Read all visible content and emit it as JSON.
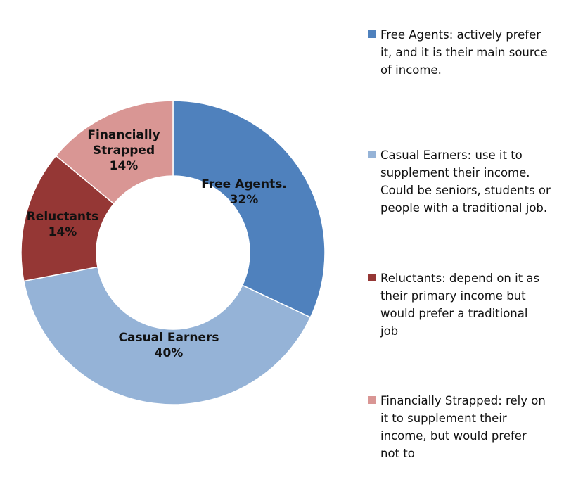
{
  "chart_data": {
    "type": "pie",
    "donut": true,
    "categories": [
      "Free Agents",
      "Casual Earners",
      "Reluctants",
      "Financially Strapped"
    ],
    "values": [
      32,
      40,
      14,
      14
    ],
    "unit": "%",
    "colors": [
      "#4f81bd",
      "#95b3d7",
      "#953735",
      "#d99694"
    ],
    "slice_labels": [
      {
        "lines": [
          "Free Agents.",
          "32%"
        ]
      },
      {
        "lines": [
          "Casual Earners",
          "40%"
        ]
      },
      {
        "lines": [
          "Reluctants",
          "14%"
        ]
      },
      {
        "lines": [
          "Financially",
          "Strapped",
          "14%"
        ]
      }
    ],
    "legend": {
      "placement": "right",
      "entries": [
        {
          "lines": [
            "Free Agents: actively prefer",
            "it, and it is their main source",
            "of income."
          ]
        },
        {
          "lines": [
            "Casual Earners: use it to",
            "supplement their income.",
            "Could be seniors, students or",
            "people with a traditional job."
          ]
        },
        {
          "lines": [
            "Reluctants: depend on it as",
            "their primary income but",
            "would prefer a traditional",
            "job"
          ]
        },
        {
          "lines": [
            "Financially Strapped: rely on",
            "it to supplement their",
            "income, but would prefer",
            "not to"
          ]
        }
      ]
    }
  }
}
